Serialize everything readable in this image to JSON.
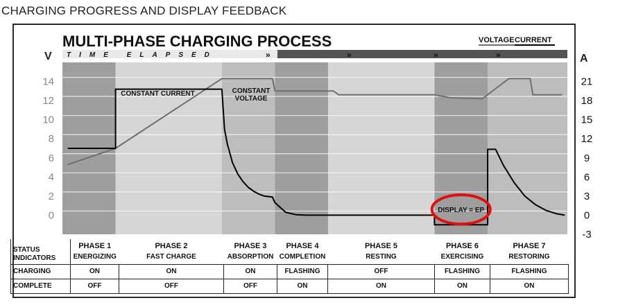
{
  "page_title": "CHARGING PROGRESS AND DISPLAY FEEDBACK",
  "colors": {
    "bg_light": "#d6d6d6",
    "bg_medium": "#bdbdbd",
    "bg_dark": "#9e9e9e",
    "voltage_line": "#6f6f6f",
    "current_line": "#000000",
    "highlight": "#e01010",
    "time_bar": "#3a3a3a"
  },
  "chart_data": {
    "type": "line",
    "title": "MULTI-PHASE CHARGING PROCESS",
    "time_bar_label": "TIME ELAPSED",
    "legend": [
      "VOLTAGE",
      "CURRENT"
    ],
    "legend_position": "top-right",
    "left_axis": {
      "label": "V",
      "ticks": [
        0,
        2,
        4,
        6,
        8,
        10,
        12,
        14
      ],
      "range": [
        -2,
        16
      ]
    },
    "right_axis": {
      "label": "A",
      "ticks": [
        -3,
        0,
        3,
        6,
        9,
        12,
        15,
        18,
        21
      ],
      "range": [
        -3,
        24
      ]
    },
    "phases": [
      {
        "id": 1,
        "label": "PHASE 1",
        "name": "ENERGIZING",
        "start": 0,
        "end": 10,
        "shade": "dark"
      },
      {
        "id": 2,
        "label": "PHASE 2",
        "name": "FAST CHARGE",
        "start": 10,
        "end": 30,
        "shade": "light"
      },
      {
        "id": 3,
        "label": "PHASE 3",
        "name": "ABSORPTION",
        "start": 30,
        "end": 40,
        "shade": "medium"
      },
      {
        "id": 4,
        "label": "PHASE 4",
        "name": "COMPLETION",
        "start": 40,
        "end": 50,
        "shade": "dark"
      },
      {
        "id": 5,
        "label": "PHASE 5",
        "name": "RESTING",
        "start": 50,
        "end": 70,
        "shade": "light"
      },
      {
        "id": 6,
        "label": "PHASE 6",
        "name": "EXERCISING",
        "start": 70,
        "end": 80,
        "shade": "dark"
      },
      {
        "id": 7,
        "label": "PHASE 7",
        "name": "RESTORING",
        "start": 80,
        "end": 95,
        "shade": "medium"
      }
    ],
    "series": [
      {
        "name": "VOLTAGE",
        "axis": "left",
        "points": [
          [
            1,
            5.3
          ],
          [
            10,
            7
          ],
          [
            30,
            14.3
          ],
          [
            39.5,
            14.3
          ],
          [
            40,
            13
          ],
          [
            51,
            13
          ],
          [
            52,
            12.6
          ],
          [
            70,
            12.6
          ],
          [
            73,
            12.3
          ],
          [
            79,
            12.2
          ],
          [
            84,
            14.3
          ],
          [
            88,
            14.3
          ],
          [
            88.5,
            12.6
          ],
          [
            94,
            12.6
          ]
        ]
      },
      {
        "name": "CURRENT",
        "axis": "left",
        "points": [
          [
            1,
            7
          ],
          [
            10,
            7
          ],
          [
            10,
            13.2
          ],
          [
            30,
            13.2
          ],
          [
            30.5,
            9
          ],
          [
            31,
            7.5
          ],
          [
            32,
            5.5
          ],
          [
            33,
            4.3
          ],
          [
            34,
            3.5
          ],
          [
            35,
            2.9
          ],
          [
            36,
            2.5
          ],
          [
            37,
            2.2
          ],
          [
            38,
            2
          ],
          [
            39.5,
            1.9
          ],
          [
            40,
            1.3
          ],
          [
            42,
            0.3
          ],
          [
            44,
            0.05
          ],
          [
            46,
            0
          ],
          [
            70,
            0
          ],
          [
            70,
            -1
          ],
          [
            80,
            -1
          ],
          [
            80,
            6.9
          ],
          [
            81.5,
            6.9
          ],
          [
            83,
            5.2
          ],
          [
            85,
            3.4
          ],
          [
            87,
            2
          ],
          [
            89,
            1.1
          ],
          [
            91,
            0.5
          ],
          [
            93,
            0.15
          ],
          [
            94.5,
            0
          ]
        ]
      }
    ],
    "annotations": [
      {
        "text": "CONSTANT CURRENT",
        "x": 11,
        "y": 12.5
      },
      {
        "text_lines": [
          "CONSTANT",
          "VOLTAGE"
        ],
        "x": 35.5,
        "y": 12.8
      },
      {
        "text": "DISPLAY = EP",
        "x": 75,
        "y": 0.6,
        "highlighted": true
      }
    ]
  },
  "status_table": {
    "header_label_lines": [
      "STATUS",
      "INDICATORS"
    ],
    "rows": [
      {
        "label": "CHARGING",
        "values": [
          "ON",
          "ON",
          "ON",
          "FLASHING",
          "OFF",
          "FLASHING",
          "FLASHING"
        ]
      },
      {
        "label": "COMPLETE",
        "values": [
          "OFF",
          "OFF",
          "OFF",
          "ON",
          "ON",
          "ON",
          "ON"
        ]
      }
    ]
  }
}
